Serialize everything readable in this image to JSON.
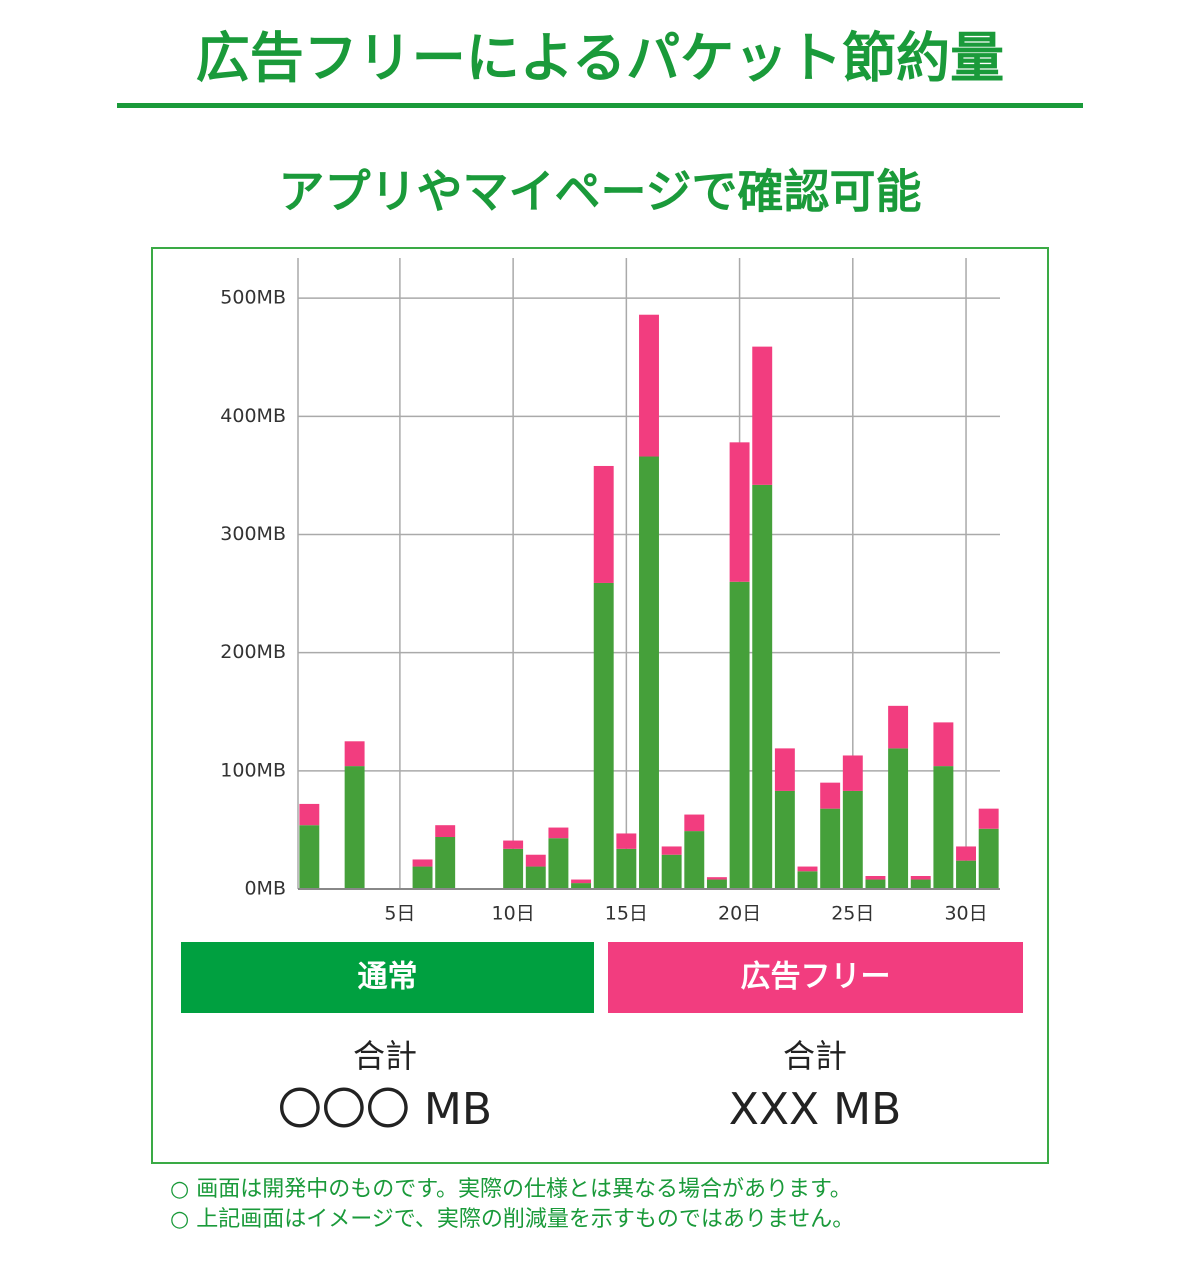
{
  "chart_data": {
    "type": "bar",
    "stacked": true,
    "title": "広告フリーによるパケット節約量",
    "subtitle": "アプリやマイページで確認可能",
    "categories": [
      null,
      null,
      null,
      null,
      "5日",
      null,
      null,
      null,
      null,
      "10日",
      null,
      null,
      null,
      null,
      "15日",
      null,
      null,
      null,
      null,
      "20日",
      null,
      null,
      null,
      null,
      "25日",
      null,
      null,
      null,
      null,
      "30日",
      null
    ],
    "series": [
      {
        "name": "通常",
        "color": "#45a03a",
        "legend_color": "#00a040",
        "values": [
          54,
          0,
          104,
          0,
          0,
          19,
          44,
          0,
          0,
          34,
          19,
          43,
          5,
          259,
          34,
          366,
          29,
          49,
          8,
          260,
          342,
          83,
          15,
          68,
          83,
          8,
          119,
          8,
          104,
          24,
          51
        ]
      },
      {
        "name": "広告フリー",
        "color": "#f23d7f",
        "legend_color": "#f23d7f",
        "values": [
          18,
          0,
          21,
          0,
          0,
          6,
          10,
          0,
          0,
          7,
          10,
          9,
          3,
          99,
          13,
          120,
          7,
          14,
          2,
          118,
          117,
          36,
          4,
          22,
          30,
          3,
          36,
          3,
          37,
          12,
          17
        ]
      }
    ],
    "ylim": [
      0,
      534
    ],
    "yticks": [
      {
        "value": 0,
        "label": "0MB"
      },
      {
        "value": 100,
        "label": "100MB"
      },
      {
        "value": 200,
        "label": "200MB"
      },
      {
        "value": 300,
        "label": "300MB"
      },
      {
        "value": 400,
        "label": "400MB"
      },
      {
        "value": 500,
        "label": "500MB"
      }
    ],
    "grid": true,
    "totals": [
      {
        "label": "合計",
        "value": "〇〇〇 MB"
      },
      {
        "label": "合計",
        "value": "XXX MB"
      }
    ],
    "notes": [
      "○ 画面は開発中のものです。実際の仕様とは異なる場合があります。",
      "○ 上記画面はイメージで、実際の削減量を示すものではありません。"
    ]
  }
}
